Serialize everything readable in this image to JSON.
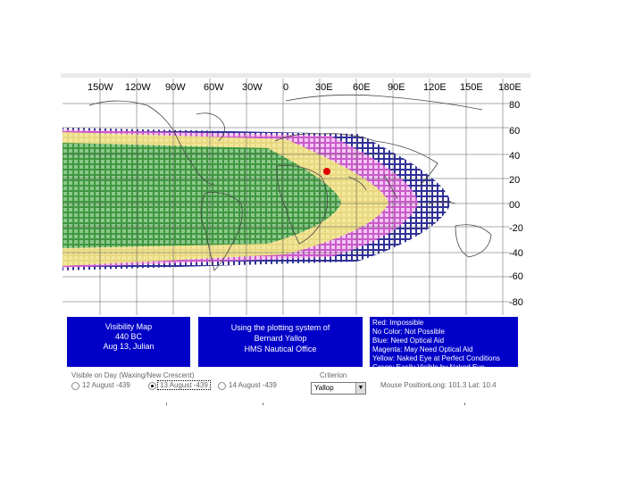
{
  "map": {
    "lon_labels": [
      "150W",
      "120W",
      "90W",
      "60W",
      "30W",
      "0",
      "30E",
      "60E",
      "90E",
      "120E",
      "150E",
      "180E"
    ],
    "lat_labels": [
      "80",
      "60",
      "40",
      "20",
      "00",
      "-20",
      "-40",
      "-60",
      "-80"
    ],
    "colors": {
      "red": "#e00000",
      "blue": "#1a1a8c",
      "magenta": "#d050d0",
      "yellow": "#f2e79a",
      "green": "#2e9a2e",
      "land": "#444444"
    }
  },
  "info_panel": {
    "line1": "Visibility Map",
    "line2": "440 BC",
    "line3": "Aug 13, Julian"
  },
  "credit_panel": {
    "line1": "Using the plotting system of",
    "line2": "Bernard Yallop",
    "line3": "HMS Nautical Office"
  },
  "legend": {
    "items": [
      "Red: Impossible",
      "No Color: Not Possible",
      "Blue: Need Optical Aid",
      "Magenta: May Need Optical Aid",
      "Yellow: Naked Eye at Perfect Conditions",
      "Green: Easily Visible by Naked Eye"
    ]
  },
  "controls": {
    "group_label": "Visible on Day (Waxing/New Crescent)",
    "radio1": "12 August -439",
    "radio2": "13 August -439",
    "radio3": "14 August -439",
    "criterion_label": "Criterion",
    "criterion_value": "Yallop",
    "mouse_label": "Mouse Position",
    "mouse_value": "Long: 101.3    Lat: 10.4"
  }
}
